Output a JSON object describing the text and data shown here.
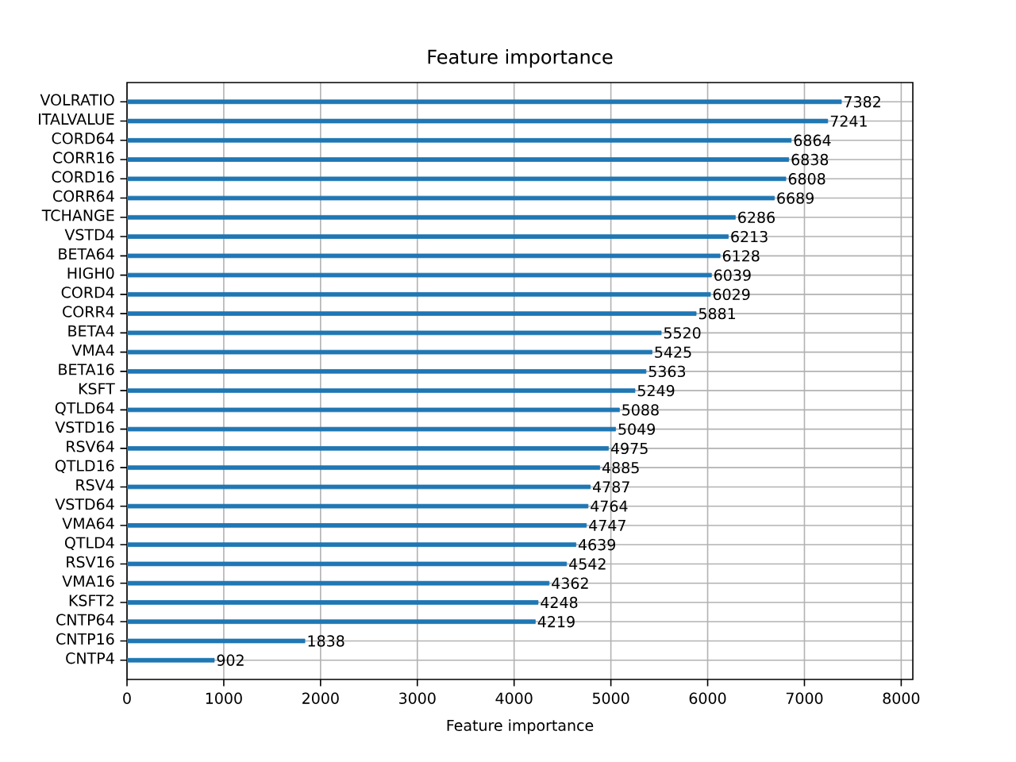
{
  "chart_data": {
    "type": "bar",
    "orientation": "horizontal",
    "title": "Feature importance",
    "xlabel": "Feature importance",
    "categories": [
      "VOLRATIO",
      "ITALVALUE",
      "CORD64",
      "CORR16",
      "CORD16",
      "CORR64",
      "TCHANGE",
      "VSTD4",
      "BETA64",
      "HIGH0",
      "CORD4",
      "CORR4",
      "BETA4",
      "VMA4",
      "BETA16",
      "KSFT",
      "QTLD64",
      "VSTD16",
      "RSV64",
      "QTLD16",
      "RSV4",
      "VSTD64",
      "VMA64",
      "QTLD4",
      "RSV16",
      "VMA16",
      "KSFT2",
      "CNTP64",
      "CNTP16",
      "CNTP4"
    ],
    "values": [
      7382,
      7241,
      6864,
      6838,
      6808,
      6689,
      6286,
      6213,
      6128,
      6039,
      6029,
      5881,
      5520,
      5425,
      5363,
      5249,
      5088,
      5049,
      4975,
      4885,
      4787,
      4764,
      4747,
      4639,
      4542,
      4362,
      4248,
      4219,
      1838,
      902
    ],
    "color": "#1f77b4",
    "xlim": [
      0,
      8120
    ],
    "xticks": [
      0,
      1000,
      2000,
      3000,
      4000,
      5000,
      6000,
      7000,
      8000
    ],
    "grid": true,
    "data_labels": true
  }
}
